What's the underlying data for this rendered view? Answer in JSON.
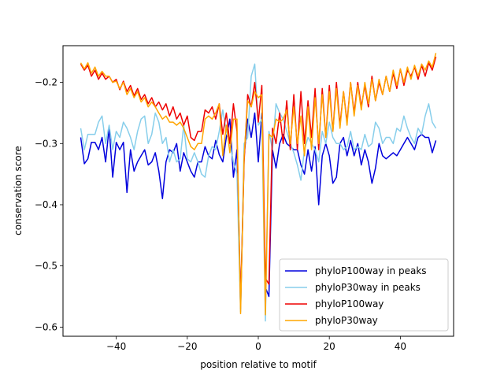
{
  "chart_data": {
    "type": "line",
    "title": "",
    "xlabel": "position relative to motif",
    "ylabel": "conservation score",
    "xlim": [
      -55,
      55
    ],
    "ylim": [
      -0.615,
      -0.14
    ],
    "xticks": [
      -40,
      -20,
      0,
      20,
      40
    ],
    "xtick_labels": [
      "−40",
      "−20",
      "0",
      "20",
      "40"
    ],
    "yticks": [
      -0.6,
      -0.5,
      -0.4,
      -0.3,
      -0.2
    ],
    "ytick_labels": [
      "−0.6",
      "−0.5",
      "−0.4",
      "−0.3",
      "−0.2"
    ],
    "grid": false,
    "legend_position": "lower-right",
    "x": [
      -50,
      -49,
      -48,
      -47,
      -46,
      -45,
      -44,
      -43,
      -42,
      -41,
      -40,
      -39,
      -38,
      -37,
      -36,
      -35,
      -34,
      -33,
      -32,
      -31,
      -30,
      -29,
      -28,
      -27,
      -26,
      -25,
      -24,
      -23,
      -22,
      -21,
      -20,
      -19,
      -18,
      -17,
      -16,
      -15,
      -14,
      -13,
      -12,
      -11,
      -10,
      -9,
      -8,
      -7,
      -6,
      -5,
      -4,
      -3,
      -2,
      -1,
      0,
      1,
      2,
      3,
      4,
      5,
      6,
      7,
      8,
      9,
      10,
      11,
      12,
      13,
      14,
      15,
      16,
      17,
      18,
      19,
      20,
      21,
      22,
      23,
      24,
      25,
      26,
      27,
      28,
      29,
      30,
      31,
      32,
      33,
      34,
      35,
      36,
      37,
      38,
      39,
      40,
      41,
      42,
      43,
      44,
      45,
      46,
      47,
      48,
      49,
      50
    ],
    "series": [
      {
        "name": "phyloP100way in peaks",
        "color": "#0000dd",
        "values": [
          -0.29,
          -0.333,
          -0.325,
          -0.298,
          -0.298,
          -0.31,
          -0.29,
          -0.33,
          -0.274,
          -0.355,
          -0.298,
          -0.31,
          -0.298,
          -0.38,
          -0.31,
          -0.345,
          -0.33,
          -0.32,
          -0.31,
          -0.335,
          -0.33,
          -0.315,
          -0.345,
          -0.39,
          -0.33,
          -0.31,
          -0.315,
          -0.3,
          -0.345,
          -0.315,
          -0.33,
          -0.345,
          -0.355,
          -0.33,
          -0.33,
          -0.305,
          -0.32,
          -0.325,
          -0.295,
          -0.318,
          -0.33,
          -0.29,
          -0.26,
          -0.355,
          -0.31,
          -0.57,
          -0.32,
          -0.26,
          -0.29,
          -0.25,
          -0.33,
          -0.25,
          -0.535,
          -0.55,
          -0.31,
          -0.34,
          -0.3,
          -0.285,
          -0.3,
          -0.305,
          -0.31,
          -0.31,
          -0.335,
          -0.35,
          -0.31,
          -0.345,
          -0.305,
          -0.4,
          -0.32,
          -0.3,
          -0.32,
          -0.365,
          -0.355,
          -0.3,
          -0.29,
          -0.32,
          -0.295,
          -0.32,
          -0.3,
          -0.335,
          -0.31,
          -0.33,
          -0.365,
          -0.34,
          -0.3,
          -0.32,
          -0.325,
          -0.32,
          -0.315,
          -0.32,
          -0.31,
          -0.3,
          -0.29,
          -0.3,
          -0.31,
          -0.29,
          -0.285,
          -0.29,
          -0.29,
          -0.315,
          -0.295
        ]
      },
      {
        "name": "phyloP30way in peaks",
        "color": "#87ceeb",
        "values": [
          -0.275,
          -0.31,
          -0.285,
          -0.285,
          -0.285,
          -0.265,
          -0.255,
          -0.3,
          -0.27,
          -0.31,
          -0.28,
          -0.29,
          -0.265,
          -0.275,
          -0.29,
          -0.31,
          -0.28,
          -0.26,
          -0.255,
          -0.3,
          -0.285,
          -0.25,
          -0.265,
          -0.3,
          -0.29,
          -0.33,
          -0.31,
          -0.33,
          -0.325,
          -0.27,
          -0.325,
          -0.33,
          -0.315,
          -0.33,
          -0.35,
          -0.355,
          -0.32,
          -0.305,
          -0.31,
          -0.28,
          -0.245,
          -0.28,
          -0.3,
          -0.33,
          -0.35,
          -0.575,
          -0.3,
          -0.29,
          -0.19,
          -0.17,
          -0.27,
          -0.26,
          -0.59,
          -0.28,
          -0.31,
          -0.235,
          -0.25,
          -0.26,
          -0.28,
          -0.3,
          -0.315,
          -0.335,
          -0.36,
          -0.31,
          -0.29,
          -0.3,
          -0.31,
          -0.33,
          -0.28,
          -0.3,
          -0.265,
          -0.29,
          -0.3,
          -0.3,
          -0.31,
          -0.305,
          -0.28,
          -0.31,
          -0.305,
          -0.31,
          -0.285,
          -0.305,
          -0.3,
          -0.265,
          -0.275,
          -0.3,
          -0.29,
          -0.29,
          -0.3,
          -0.275,
          -0.28,
          -0.255,
          -0.275,
          -0.29,
          -0.3,
          -0.275,
          -0.285,
          -0.255,
          -0.235,
          -0.265,
          -0.275
        ]
      },
      {
        "name": "phyloP100way",
        "color": "#ee0000",
        "values": [
          -0.17,
          -0.18,
          -0.172,
          -0.19,
          -0.18,
          -0.195,
          -0.185,
          -0.195,
          -0.19,
          -0.2,
          -0.195,
          -0.212,
          -0.198,
          -0.215,
          -0.205,
          -0.222,
          -0.21,
          -0.228,
          -0.22,
          -0.235,
          -0.225,
          -0.24,
          -0.232,
          -0.245,
          -0.235,
          -0.255,
          -0.24,
          -0.26,
          -0.25,
          -0.27,
          -0.255,
          -0.29,
          -0.295,
          -0.28,
          -0.28,
          -0.245,
          -0.25,
          -0.24,
          -0.26,
          -0.235,
          -0.285,
          -0.25,
          -0.3,
          -0.235,
          -0.28,
          -0.56,
          -0.33,
          -0.22,
          -0.24,
          -0.2,
          -0.265,
          -0.205,
          -0.52,
          -0.53,
          -0.275,
          -0.3,
          -0.25,
          -0.3,
          -0.23,
          -0.31,
          -0.22,
          -0.31,
          -0.215,
          -0.3,
          -0.23,
          -0.29,
          -0.21,
          -0.31,
          -0.21,
          -0.29,
          -0.205,
          -0.28,
          -0.2,
          -0.27,
          -0.215,
          -0.265,
          -0.2,
          -0.25,
          -0.2,
          -0.24,
          -0.205,
          -0.24,
          -0.19,
          -0.23,
          -0.2,
          -0.22,
          -0.19,
          -0.215,
          -0.185,
          -0.21,
          -0.178,
          -0.205,
          -0.18,
          -0.19,
          -0.175,
          -0.195,
          -0.172,
          -0.19,
          -0.168,
          -0.18,
          -0.158
        ]
      },
      {
        "name": "phyloP30way",
        "color": "#ffa500",
        "values": [
          -0.168,
          -0.178,
          -0.168,
          -0.185,
          -0.175,
          -0.19,
          -0.182,
          -0.19,
          -0.19,
          -0.2,
          -0.198,
          -0.21,
          -0.2,
          -0.22,
          -0.21,
          -0.225,
          -0.215,
          -0.232,
          -0.225,
          -0.24,
          -0.232,
          -0.24,
          -0.25,
          -0.26,
          -0.255,
          -0.265,
          -0.265,
          -0.27,
          -0.265,
          -0.275,
          -0.29,
          -0.305,
          -0.31,
          -0.3,
          -0.3,
          -0.26,
          -0.255,
          -0.26,
          -0.25,
          -0.235,
          -0.32,
          -0.27,
          -0.315,
          -0.26,
          -0.26,
          -0.578,
          -0.32,
          -0.23,
          -0.24,
          -0.215,
          -0.225,
          -0.22,
          -0.58,
          -0.285,
          -0.29,
          -0.26,
          -0.265,
          -0.26,
          -0.245,
          -0.3,
          -0.24,
          -0.3,
          -0.255,
          -0.32,
          -0.24,
          -0.31,
          -0.225,
          -0.3,
          -0.22,
          -0.29,
          -0.215,
          -0.28,
          -0.21,
          -0.275,
          -0.215,
          -0.27,
          -0.2,
          -0.255,
          -0.205,
          -0.245,
          -0.2,
          -0.235,
          -0.195,
          -0.23,
          -0.195,
          -0.22,
          -0.19,
          -0.215,
          -0.18,
          -0.205,
          -0.178,
          -0.2,
          -0.175,
          -0.195,
          -0.172,
          -0.19,
          -0.17,
          -0.18,
          -0.165,
          -0.175,
          -0.152
        ]
      }
    ]
  }
}
